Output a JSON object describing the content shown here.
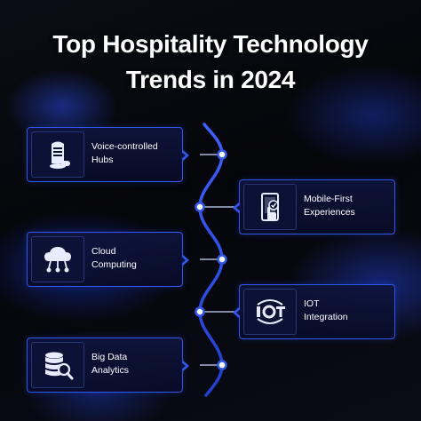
{
  "title": {
    "line1": "Top Hospitality Technology",
    "line2": "Trends in 2024"
  },
  "colors": {
    "accent": "#2f57f0",
    "background": "#07080d",
    "text": "#ffffff"
  },
  "trends": [
    {
      "line1": "Voice-controlled",
      "line2": "Hubs",
      "icon": "smart-speaker-icon",
      "side": "left"
    },
    {
      "line1": "Mobile-First",
      "line2": "Experiences",
      "icon": "mobile-touch-icon",
      "side": "right"
    },
    {
      "line1": "Cloud",
      "line2": "Computing",
      "icon": "cloud-network-icon",
      "side": "left"
    },
    {
      "line1": "IOT",
      "line2": "Integration",
      "icon": "iot-icon",
      "side": "right"
    },
    {
      "line1": "Big Data",
      "line2": "Analytics",
      "icon": "database-search-icon",
      "side": "left"
    }
  ]
}
